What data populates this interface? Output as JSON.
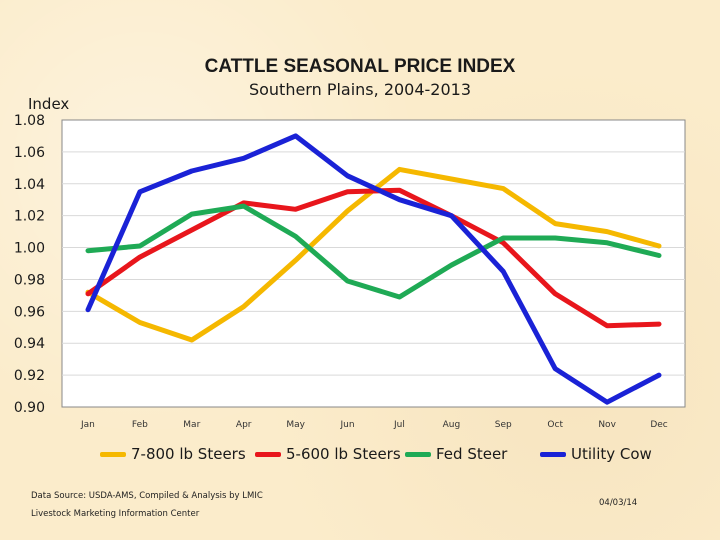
{
  "slide": {
    "data_source": "Data Source: USDA-AMS, Compiled & Analysis by LMIC",
    "organization": "Livestock Marketing Information Center",
    "date": "04/03/14"
  },
  "chart_data": {
    "type": "line",
    "title": "CATTLE SEASONAL PRICE INDEX",
    "subtitle": "Southern Plains, 2004-2013",
    "xlabel": "",
    "ylabel": "Index",
    "categories": [
      "Jan",
      "Feb",
      "Mar",
      "Apr",
      "May",
      "Jun",
      "Jul",
      "Aug",
      "Sep",
      "Oct",
      "Nov",
      "Dec"
    ],
    "yticks": [
      "0.90",
      "0.92",
      "0.94",
      "0.96",
      "0.98",
      "1.00",
      "1.02",
      "1.04",
      "1.06",
      "1.08"
    ],
    "ylim": [
      0.9,
      1.08
    ],
    "grid": "horizontal",
    "legend": "bottom",
    "series": [
      {
        "name": "7-800 lb Steers",
        "color": "#f5b800",
        "values": [
          0.972,
          0.953,
          0.942,
          0.963,
          0.992,
          1.023,
          1.049,
          1.043,
          1.037,
          1.015,
          1.01,
          1.001
        ]
      },
      {
        "name": "5-600 lb Steers",
        "color": "#e8161c",
        "values": [
          0.971,
          0.994,
          1.011,
          1.028,
          1.024,
          1.035,
          1.036,
          1.02,
          1.003,
          0.971,
          0.951,
          0.952
        ]
      },
      {
        "name": "Fed Steer",
        "color": "#1faa55",
        "values": [
          0.998,
          1.001,
          1.021,
          1.026,
          1.007,
          0.979,
          0.969,
          0.989,
          1.006,
          1.006,
          1.003,
          0.995
        ]
      },
      {
        "name": "Utility Cow",
        "color": "#1a22d6",
        "values": [
          0.961,
          1.035,
          1.048,
          1.056,
          1.07,
          1.045,
          1.03,
          1.02,
          0.985,
          0.924,
          0.903,
          0.92
        ]
      }
    ]
  }
}
